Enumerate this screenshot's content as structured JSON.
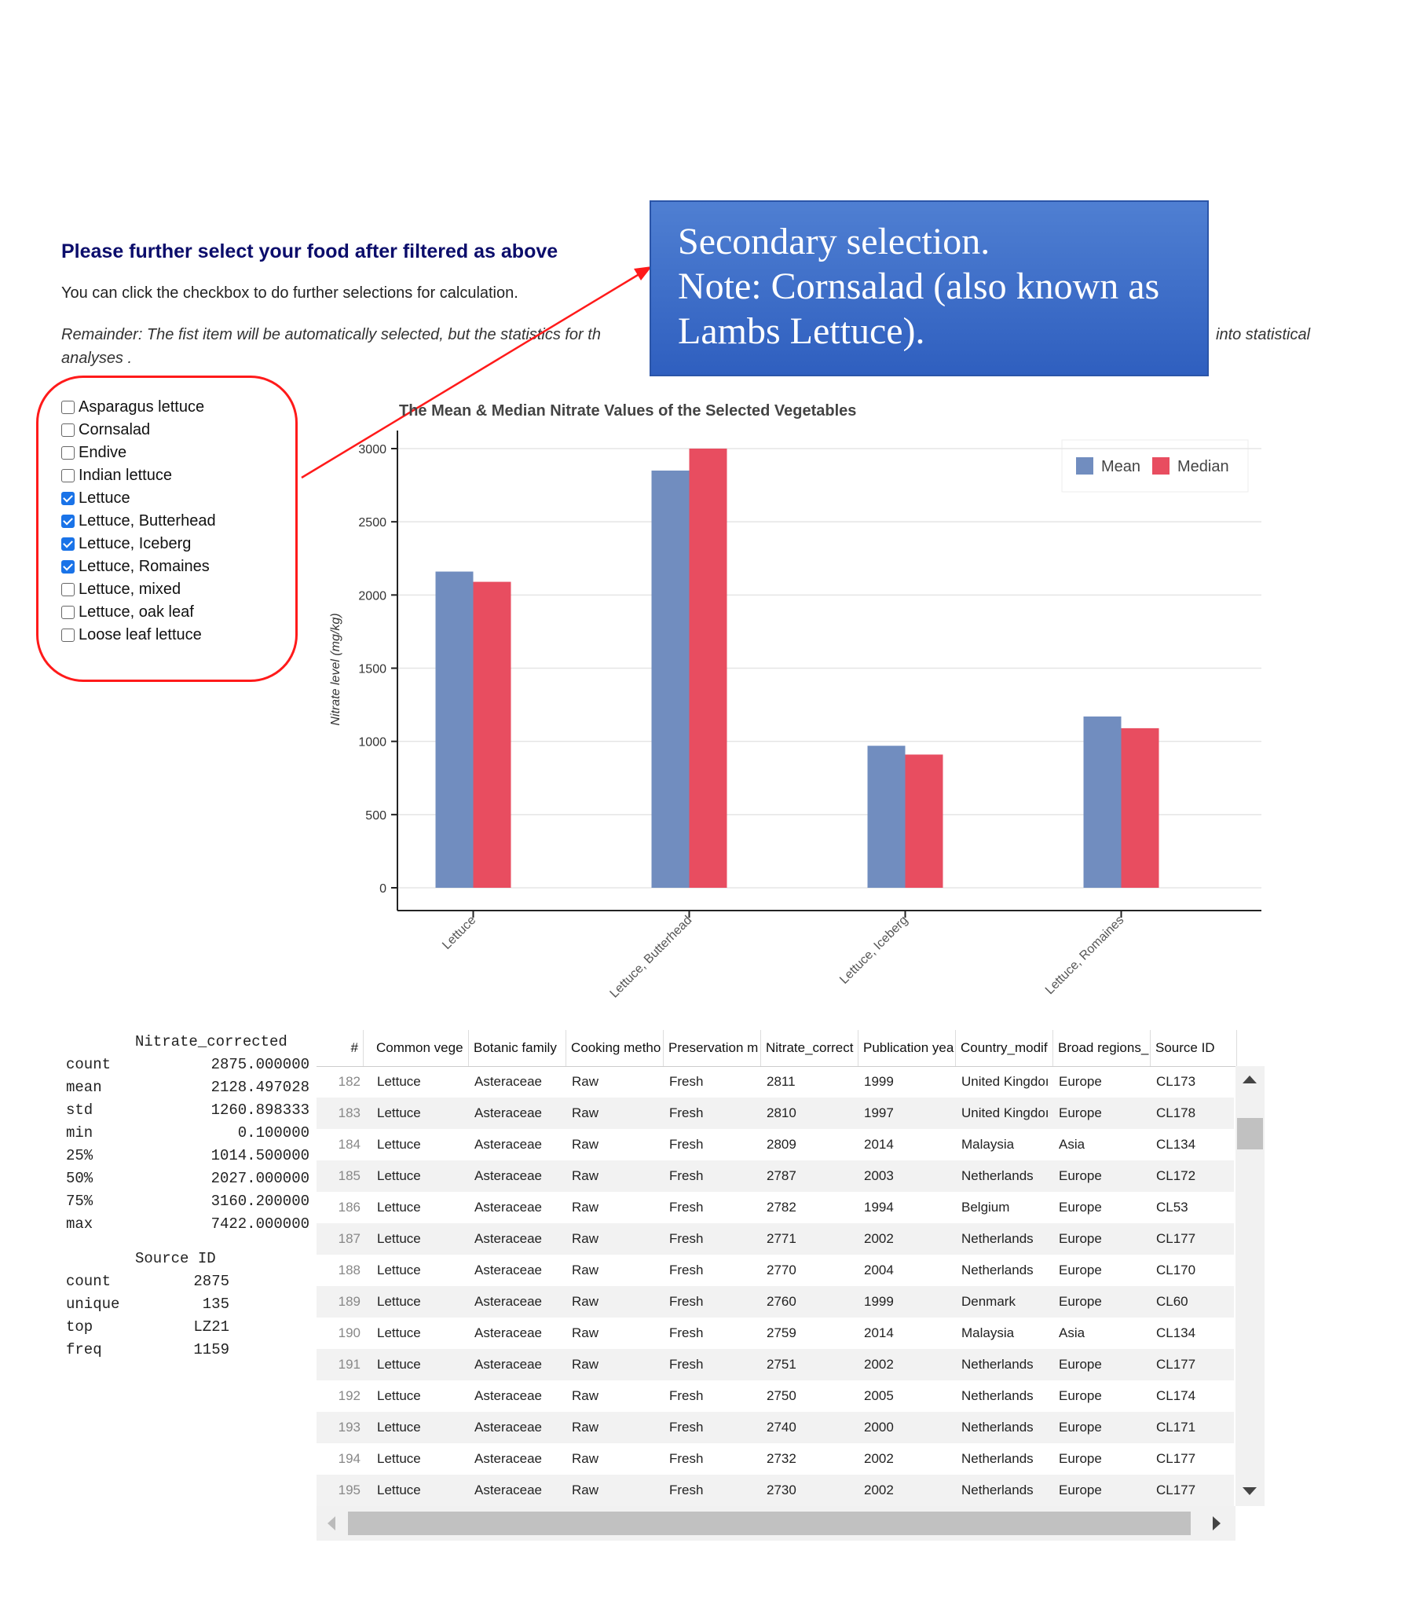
{
  "heading": "Please further select your food after filtered as above",
  "subtext": "You can click the checkbox to do further selections for calculation.",
  "reminder_left": "Remainder: The fist item will be automatically selected, but the statistics for th",
  "reminder_right": "into statistical",
  "reminder_line2": "analyses .",
  "callout": {
    "line1": "Secondary selection.",
    "line2": "Note: Cornsalad (also known as",
    "line3": "Lambs Lettuce)."
  },
  "checkboxes": [
    {
      "label": "Asparagus lettuce",
      "checked": false
    },
    {
      "label": "Cornsalad",
      "checked": false
    },
    {
      "label": "Endive",
      "checked": false
    },
    {
      "label": "Indian lettuce",
      "checked": false
    },
    {
      "label": "Lettuce",
      "checked": true
    },
    {
      "label": "Lettuce, Butterhead",
      "checked": true
    },
    {
      "label": "Lettuce, Iceberg",
      "checked": true
    },
    {
      "label": "Lettuce, Romaines",
      "checked": true
    },
    {
      "label": "Lettuce, mixed",
      "checked": false
    },
    {
      "label": "Lettuce, oak leaf",
      "checked": false
    },
    {
      "label": "Loose leaf lettuce",
      "checked": false
    }
  ],
  "chart_data": {
    "type": "bar",
    "title": "The Mean & Median Nitrate Values of the Selected Vegetables",
    "ylabel": "Nitrate level (mg/kg)",
    "xlabel": "",
    "categories": [
      "Lettuce",
      "Lettuce, Butterhead",
      "Lettuce, Iceberg",
      "Lettuce, Romaines"
    ],
    "series": [
      {
        "name": "Mean",
        "color": "#718dbf",
        "values": [
          2160,
          2850,
          970,
          1170
        ]
      },
      {
        "name": "Median",
        "color": "#e84d60",
        "values": [
          2090,
          3000,
          910,
          1090
        ]
      }
    ],
    "yticks": [
      0,
      500,
      1000,
      1500,
      2000,
      2500,
      3000
    ],
    "ylim": [
      0,
      3000
    ],
    "grid": true,
    "legend": "top-right"
  },
  "stats1": {
    "header": "Nitrate_corrected",
    "rows": [
      {
        "k": "count",
        "v": "2875.000000"
      },
      {
        "k": "mean",
        "v": "2128.497028"
      },
      {
        "k": "std",
        "v": "1260.898333"
      },
      {
        "k": "min",
        "v": "0.100000"
      },
      {
        "k": "25%",
        "v": "1014.500000"
      },
      {
        "k": "50%",
        "v": "2027.000000"
      },
      {
        "k": "75%",
        "v": "3160.200000"
      },
      {
        "k": "max",
        "v": "7422.000000"
      }
    ]
  },
  "stats2": {
    "header": "Source ID",
    "rows": [
      {
        "k": "count",
        "v": "2875"
      },
      {
        "k": "unique",
        "v": "135"
      },
      {
        "k": "top",
        "v": "LZ21"
      },
      {
        "k": "freq",
        "v": "1159"
      }
    ]
  },
  "table": {
    "columns": [
      "#",
      "Common vege",
      "Botanic family",
      "Cooking metho",
      "Preservation m",
      "Nitrate_correct",
      "Publication yea",
      "Country_modif",
      "Broad regions_",
      "Source ID"
    ],
    "rows": [
      [
        "182",
        "Lettuce",
        "Asteraceae",
        "Raw",
        "Fresh",
        "2811",
        "1999",
        "United Kingdoı",
        "Europe",
        "CL173"
      ],
      [
        "183",
        "Lettuce",
        "Asteraceae",
        "Raw",
        "Fresh",
        "2810",
        "1997",
        "United Kingdoı",
        "Europe",
        "CL178"
      ],
      [
        "184",
        "Lettuce",
        "Asteraceae",
        "Raw",
        "Fresh",
        "2809",
        "2014",
        "Malaysia",
        "Asia",
        "CL134"
      ],
      [
        "185",
        "Lettuce",
        "Asteraceae",
        "Raw",
        "Fresh",
        "2787",
        "2003",
        "Netherlands",
        "Europe",
        "CL172"
      ],
      [
        "186",
        "Lettuce",
        "Asteraceae",
        "Raw",
        "Fresh",
        "2782",
        "1994",
        "Belgium",
        "Europe",
        "CL53"
      ],
      [
        "187",
        "Lettuce",
        "Asteraceae",
        "Raw",
        "Fresh",
        "2771",
        "2002",
        "Netherlands",
        "Europe",
        "CL177"
      ],
      [
        "188",
        "Lettuce",
        "Asteraceae",
        "Raw",
        "Fresh",
        "2770",
        "2004",
        "Netherlands",
        "Europe",
        "CL170"
      ],
      [
        "189",
        "Lettuce",
        "Asteraceae",
        "Raw",
        "Fresh",
        "2760",
        "1999",
        "Denmark",
        "Europe",
        "CL60"
      ],
      [
        "190",
        "Lettuce",
        "Asteraceae",
        "Raw",
        "Fresh",
        "2759",
        "2014",
        "Malaysia",
        "Asia",
        "CL134"
      ],
      [
        "191",
        "Lettuce",
        "Asteraceae",
        "Raw",
        "Fresh",
        "2751",
        "2002",
        "Netherlands",
        "Europe",
        "CL177"
      ],
      [
        "192",
        "Lettuce",
        "Asteraceae",
        "Raw",
        "Fresh",
        "2750",
        "2005",
        "Netherlands",
        "Europe",
        "CL174"
      ],
      [
        "193",
        "Lettuce",
        "Asteraceae",
        "Raw",
        "Fresh",
        "2740",
        "2000",
        "Netherlands",
        "Europe",
        "CL171"
      ],
      [
        "194",
        "Lettuce",
        "Asteraceae",
        "Raw",
        "Fresh",
        "2732",
        "2002",
        "Netherlands",
        "Europe",
        "CL177"
      ],
      [
        "195",
        "Lettuce",
        "Asteraceae",
        "Raw",
        "Fresh",
        "2730",
        "2002",
        "Netherlands",
        "Europe",
        "CL177"
      ]
    ]
  }
}
